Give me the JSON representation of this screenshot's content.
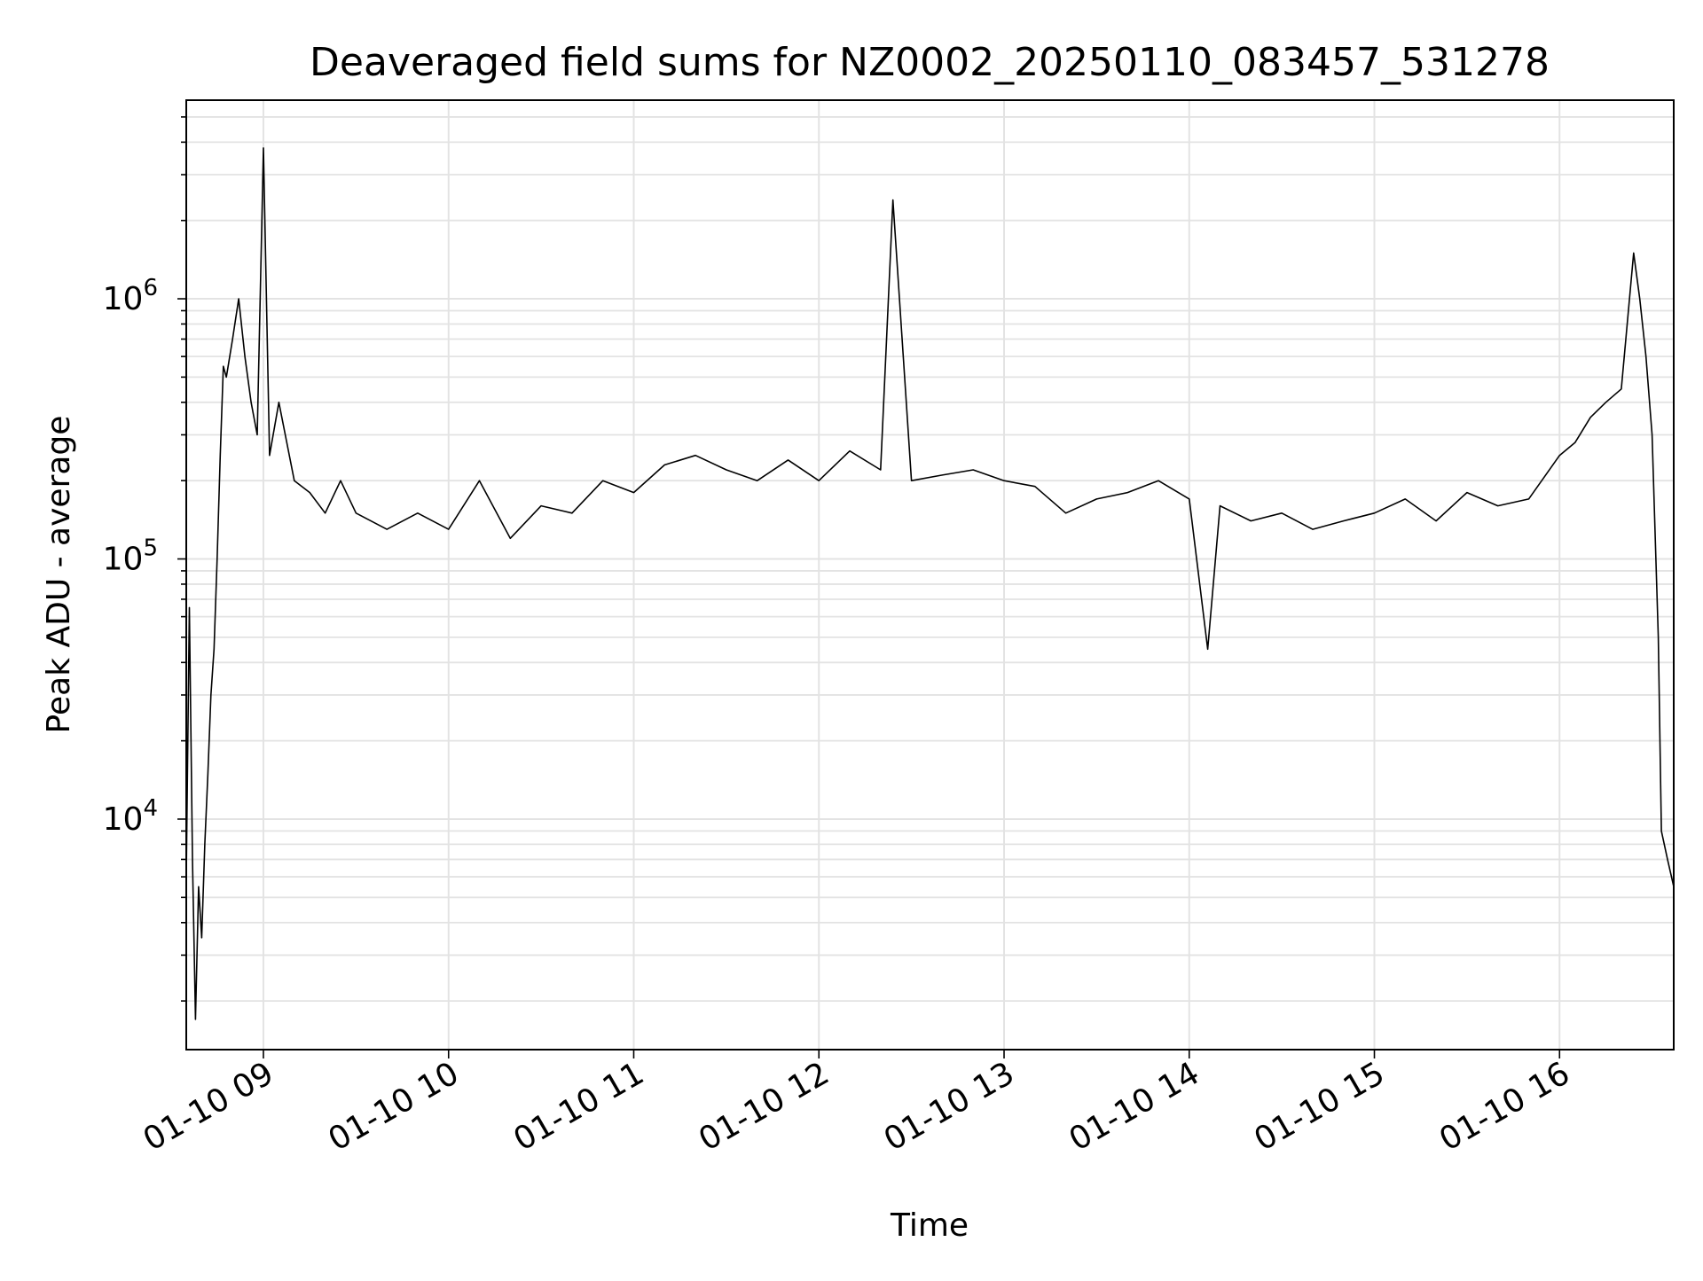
{
  "chart_data": {
    "type": "line",
    "title": "Deaveraged field sums for NZ0002_20250110_083457_531278",
    "xlabel": "Time",
    "ylabel": "Peak ADU - average",
    "yscale": "log",
    "ylim": [
      1300,
      5800000
    ],
    "xlim": [
      "2025-01-10 08:35",
      "2025-01-10 16:37"
    ],
    "grid": "both",
    "line_color": "#000000",
    "x_ticks": [
      {
        "label": "01-10 09",
        "value": "2025-01-10 09:00"
      },
      {
        "label": "01-10 10",
        "value": "2025-01-10 10:00"
      },
      {
        "label": "01-10 11",
        "value": "2025-01-10 11:00"
      },
      {
        "label": "01-10 12",
        "value": "2025-01-10 12:00"
      },
      {
        "label": "01-10 13",
        "value": "2025-01-10 13:00"
      },
      {
        "label": "01-10 14",
        "value": "2025-01-10 14:00"
      },
      {
        "label": "01-10 15",
        "value": "2025-01-10 15:00"
      },
      {
        "label": "01-10 16",
        "value": "2025-01-10 16:00"
      }
    ],
    "y_ticks": [
      {
        "base": "10",
        "exp": "4",
        "value": 10000
      },
      {
        "base": "10",
        "exp": "5",
        "value": 100000
      },
      {
        "base": "10",
        "exp": "6",
        "value": 1000000
      }
    ],
    "series": [
      {
        "x": [
          "2025-01-10 08:35",
          "2025-01-10 08:36",
          "2025-01-10 08:37",
          "2025-01-10 08:38",
          "2025-01-10 08:39",
          "2025-01-10 08:40",
          "2025-01-10 08:41",
          "2025-01-10 08:42",
          "2025-01-10 08:43",
          "2025-01-10 08:44",
          "2025-01-10 08:45",
          "2025-01-10 08:46",
          "2025-01-10 08:47",
          "2025-01-10 08:48",
          "2025-01-10 08:50",
          "2025-01-10 08:52",
          "2025-01-10 08:54",
          "2025-01-10 08:56",
          "2025-01-10 08:58",
          "2025-01-10 09:00",
          "2025-01-10 09:02",
          "2025-01-10 09:05",
          "2025-01-10 09:10",
          "2025-01-10 09:15",
          "2025-01-10 09:20",
          "2025-01-10 09:25",
          "2025-01-10 09:30",
          "2025-01-10 09:40",
          "2025-01-10 09:50",
          "2025-01-10 10:00",
          "2025-01-10 10:10",
          "2025-01-10 10:20",
          "2025-01-10 10:30",
          "2025-01-10 10:40",
          "2025-01-10 10:50",
          "2025-01-10 11:00",
          "2025-01-10 11:10",
          "2025-01-10 11:20",
          "2025-01-10 11:30",
          "2025-01-10 11:40",
          "2025-01-10 11:50",
          "2025-01-10 12:00",
          "2025-01-10 12:10",
          "2025-01-10 12:20",
          "2025-01-10 12:24",
          "2025-01-10 12:30",
          "2025-01-10 12:40",
          "2025-01-10 12:50",
          "2025-01-10 13:00",
          "2025-01-10 13:10",
          "2025-01-10 13:20",
          "2025-01-10 13:30",
          "2025-01-10 13:40",
          "2025-01-10 13:50",
          "2025-01-10 14:00",
          "2025-01-10 14:06",
          "2025-01-10 14:10",
          "2025-01-10 14:20",
          "2025-01-10 14:30",
          "2025-01-10 14:40",
          "2025-01-10 14:50",
          "2025-01-10 15:00",
          "2025-01-10 15:10",
          "2025-01-10 15:20",
          "2025-01-10 15:30",
          "2025-01-10 15:40",
          "2025-01-10 15:50",
          "2025-01-10 16:00",
          "2025-01-10 16:05",
          "2025-01-10 16:10",
          "2025-01-10 16:15",
          "2025-01-10 16:20",
          "2025-01-10 16:24",
          "2025-01-10 16:26",
          "2025-01-10 16:28",
          "2025-01-10 16:30",
          "2025-01-10 16:32",
          "2025-01-10 16:33",
          "2025-01-10 16:35",
          "2025-01-10 16:37"
        ],
        "y": [
          6000,
          65000,
          7000,
          1700,
          5500,
          3500,
          8000,
          15000,
          30000,
          45000,
          100000,
          250000,
          550000,
          500000,
          700000,
          1000000,
          600000,
          400000,
          300000,
          3800000,
          250000,
          400000,
          200000,
          180000,
          150000,
          200000,
          150000,
          130000,
          150000,
          130000,
          200000,
          120000,
          160000,
          150000,
          200000,
          180000,
          230000,
          250000,
          220000,
          200000,
          240000,
          200000,
          260000,
          220000,
          2400000,
          200000,
          210000,
          220000,
          200000,
          190000,
          150000,
          170000,
          180000,
          200000,
          170000,
          45000,
          160000,
          140000,
          150000,
          130000,
          140000,
          150000,
          170000,
          140000,
          180000,
          160000,
          170000,
          250000,
          280000,
          350000,
          400000,
          450000,
          1500000,
          1000000,
          600000,
          300000,
          50000,
          9000,
          7000,
          5500
        ]
      }
    ]
  }
}
